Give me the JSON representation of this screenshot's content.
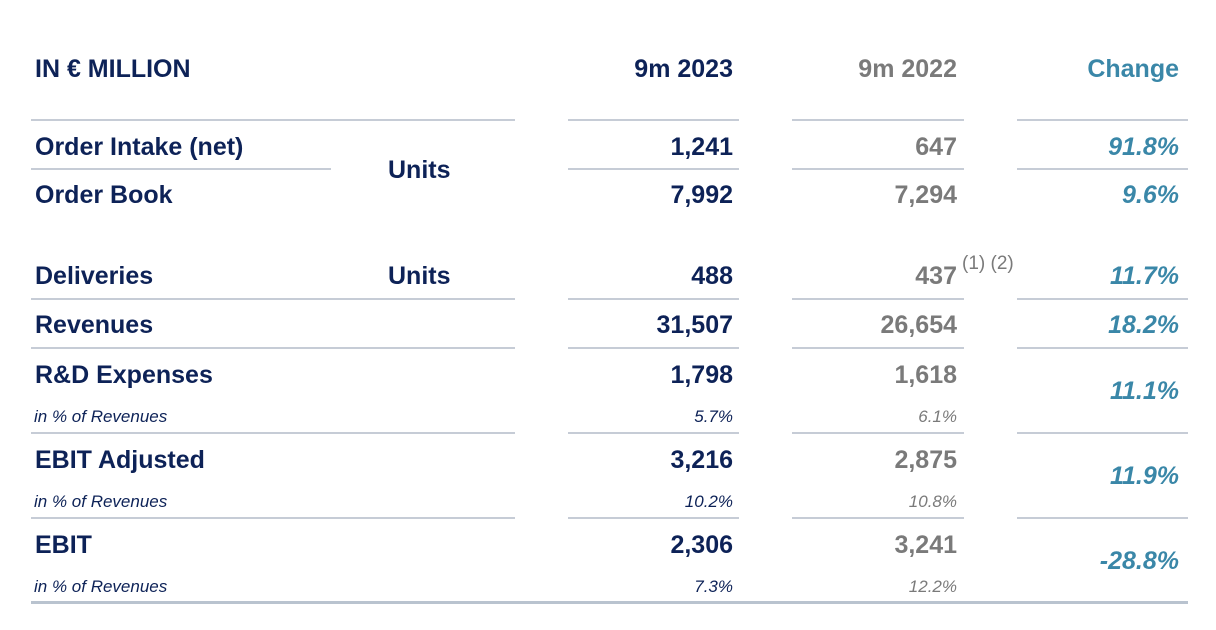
{
  "header": {
    "unit": "IN € MILLION",
    "col_2023": "9m 2023",
    "col_2022": "9m 2022",
    "col_change": "Change"
  },
  "footnote": "(1) (2)",
  "rows": {
    "order_intake": {
      "label": "Order Intake (net)",
      "v2023": "1,241",
      "v2022": "647",
      "change": "91.8%"
    },
    "order_book": {
      "label": "Order Book",
      "v2023": "7,992",
      "v2022": "7,294",
      "change": "9.6%"
    },
    "units_group": "Units",
    "deliveries": {
      "label": "Deliveries",
      "unit": "Units",
      "v2023": "488",
      "v2022": "437",
      "change": "11.7%"
    },
    "revenues": {
      "label": "Revenues",
      "v2023": "31,507",
      "v2022": "26,654",
      "change": "18.2%"
    },
    "rd": {
      "label": "R&D Expenses",
      "v2023": "1,798",
      "v2022": "1,618",
      "change": "11.1%",
      "sub_label": "in % of Revenues",
      "sub2023": "5.7%",
      "sub2022": "6.1%"
    },
    "ebit_adj": {
      "label": "EBIT Adjusted",
      "v2023": "3,216",
      "v2022": "2,875",
      "change": "11.9%",
      "sub_label": "in % of Revenues",
      "sub2023": "10.2%",
      "sub2022": "10.8%"
    },
    "ebit": {
      "label": "EBIT",
      "v2023": "2,306",
      "v2022": "3,241",
      "change": "-28.8%",
      "sub_label": "in % of Revenues",
      "sub2023": "7.3%",
      "sub2022": "12.2%"
    }
  }
}
